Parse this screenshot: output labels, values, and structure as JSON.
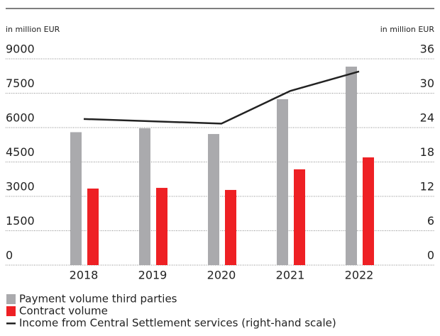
{
  "chart_data": {
    "type": "bar",
    "y_label": "in million EUR",
    "y2_label": "in million EUR",
    "categories": [
      "2018",
      "2019",
      "2020",
      "2021",
      "2022"
    ],
    "series": [
      {
        "name": "Payment volume third parties",
        "color": "#aaaaad",
        "values": [
          5800,
          5970,
          5720,
          7240,
          8660
        ]
      },
      {
        "name": "Contract volume",
        "color": "#ee2024",
        "values": [
          3340,
          3370,
          3280,
          4180,
          4700
        ]
      },
      {
        "name": "Income from Central Settlement services (right-hand scale)",
        "color": "#222222",
        "type": "line",
        "axis": "y2",
        "values": [
          25.5,
          25.1,
          24.7,
          30.4,
          33.8
        ]
      }
    ],
    "ylim": [
      0,
      9000
    ],
    "yticks": [
      0,
      1500,
      3000,
      4500,
      6000,
      7500,
      9000
    ],
    "y2lim": [
      0,
      36
    ],
    "y2ticks": [
      0,
      6,
      12,
      18,
      24,
      30,
      36
    ],
    "grid": true
  }
}
